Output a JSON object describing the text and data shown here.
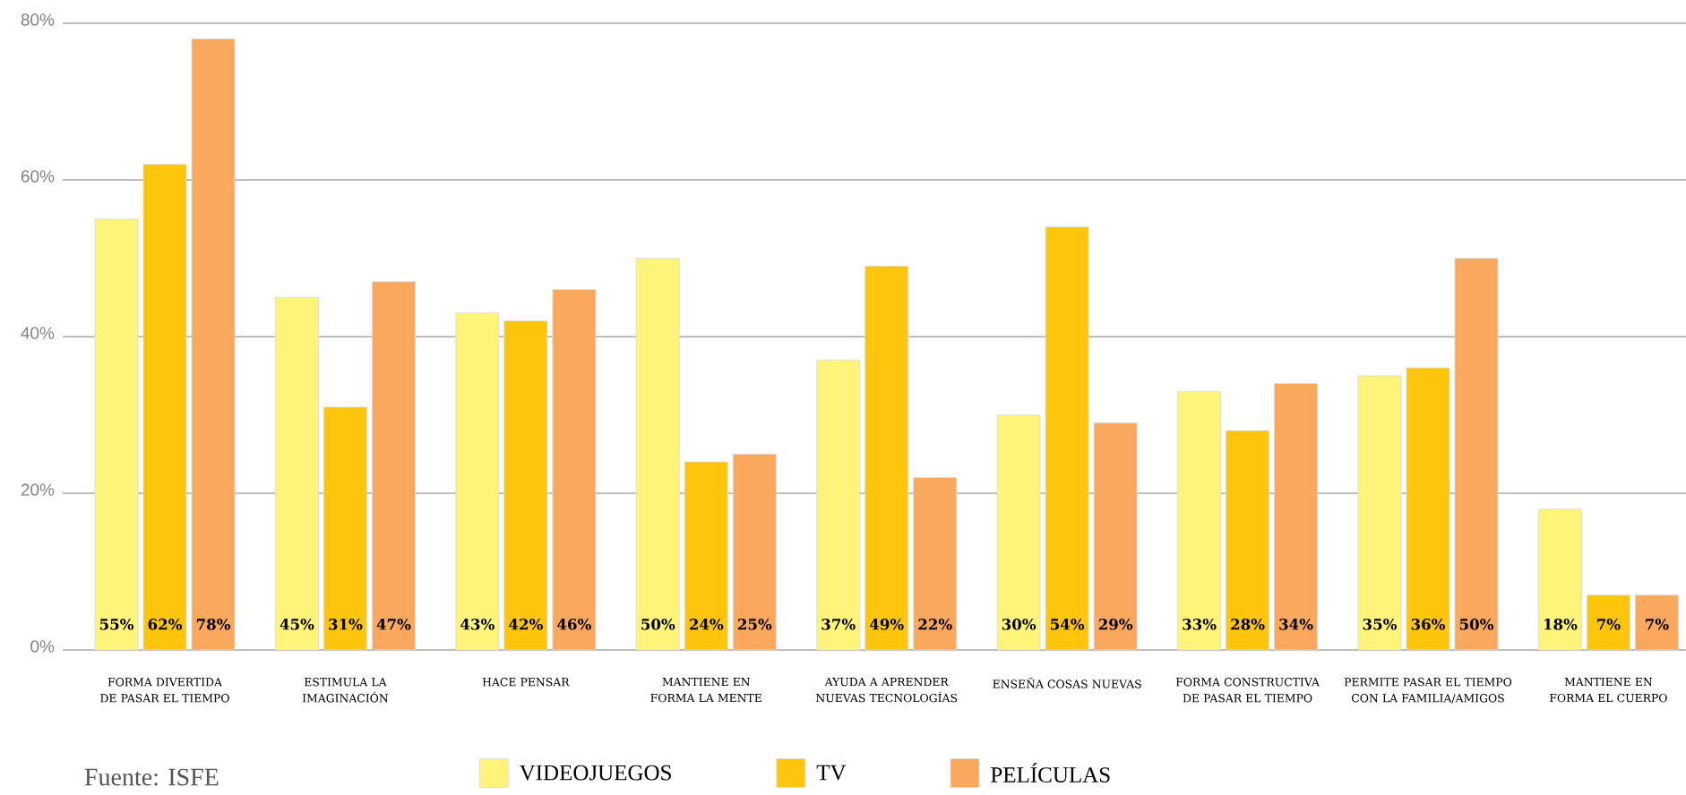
{
  "chart_data": {
    "type": "bar",
    "categories": [
      "FORMA DIVERTIDA DE PASAR EL TIEMPO",
      "ESTIMULA LA IMAGINACIÓN",
      "HACE PENSAR",
      "MANTIENE EN FORMA LA MENTE",
      "AYUDA A APRENDER NUEVAS TECNOLOGÍAS",
      "ENSEÑA COSAS NUEVAS",
      "FORMA CONSTRUCTIVA DE PASAR EL TIEMPO",
      "PERMITE PASAR EL TIEMPO CON LA FAMILIA/AMIGOS",
      "MANTIENE EN FORMA EL CUERPO"
    ],
    "series": [
      {
        "name": "VIDEOJUEGOS",
        "color": "#fff47a",
        "values": [
          55,
          45,
          43,
          50,
          37,
          30,
          33,
          35,
          18
        ],
        "value_labels": [
          "55%",
          "45%",
          "43%",
          "50%",
          "37%",
          "30%",
          "33%",
          "35%",
          "18%"
        ]
      },
      {
        "name": "TV",
        "color": "#fdc60c",
        "values": [
          62,
          31,
          42,
          24,
          49,
          54,
          28,
          36,
          7
        ],
        "value_labels": [
          "62%",
          "31%",
          "42%",
          "24%",
          "49%",
          "54%",
          "28%",
          "36%",
          "7%"
        ]
      },
      {
        "name": "PELÍCULAS",
        "color": "#f9a85d",
        "values": [
          78,
          47,
          46,
          25,
          22,
          29,
          34,
          50,
          7
        ],
        "value_labels": [
          "78%",
          "47%",
          "46%",
          "25%",
          "22%",
          "29%",
          "34%",
          "50%",
          "7%"
        ]
      }
    ],
    "ylim": [
      0,
      80
    ],
    "yticks": [
      {
        "value": 0,
        "label": "0%"
      },
      {
        "value": 20,
        "label": "20%"
      },
      {
        "value": 40,
        "label": "40%"
      },
      {
        "value": 60,
        "label": "60%"
      },
      {
        "value": 80,
        "label": "80%"
      }
    ],
    "grid": "y",
    "legend": "bottom",
    "annotations": [
      "Fuente: ISFE"
    ]
  }
}
